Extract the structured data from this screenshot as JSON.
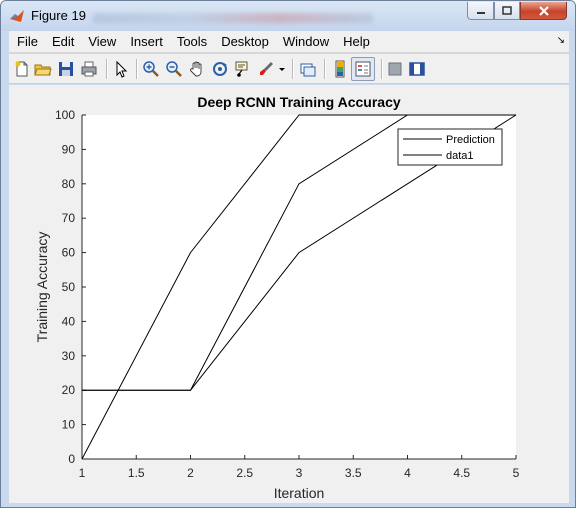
{
  "window": {
    "title": "Figure 19",
    "controls": [
      "minimize",
      "maximize",
      "close"
    ]
  },
  "menu": {
    "items": [
      "File",
      "Edit",
      "View",
      "Insert",
      "Tools",
      "Desktop",
      "Window",
      "Help"
    ]
  },
  "toolbar": {
    "icons": [
      "new-figure-icon",
      "open-file-icon",
      "save-icon",
      "print-icon",
      "pointer-icon",
      "zoom-in-icon",
      "zoom-out-icon",
      "pan-icon",
      "rotate-3d-icon",
      "data-cursor-icon",
      "brush-icon",
      "brush-dropdown-icon",
      "link-plot-icon",
      "colorbar-icon",
      "legend-icon",
      "hide-plot-tools-icon",
      "show-plot-tools-icon"
    ]
  },
  "chart_data": {
    "type": "line",
    "title": "Deep RCNN Training Accuracy",
    "xlabel": "Iteration",
    "ylabel": "Training Accuracy",
    "xlim": [
      1,
      5
    ],
    "ylim": [
      0,
      100
    ],
    "xticks": [
      1,
      1.5,
      2,
      2.5,
      3,
      3.5,
      4,
      4.5,
      5
    ],
    "xtick_labels": [
      "1",
      "1.5",
      "2",
      "2.5",
      "3",
      "3.5",
      "4",
      "4.5",
      "5"
    ],
    "yticks": [
      0,
      10,
      20,
      30,
      40,
      50,
      60,
      70,
      80,
      90,
      100
    ],
    "ytick_labels": [
      "0",
      "10",
      "20",
      "30",
      "40",
      "50",
      "60",
      "70",
      "80",
      "90",
      "100"
    ],
    "grid": false,
    "legend_position": "top-right",
    "series_color": "#000000",
    "series": [
      {
        "name": "Prediction",
        "x": [
          1,
          2,
          3,
          4,
          5
        ],
        "y": [
          20,
          20,
          60,
          80,
          100
        ]
      },
      {
        "name": "data1",
        "x": [
          1,
          2,
          3,
          4,
          5
        ],
        "y": [
          20,
          20,
          80,
          100,
          100
        ]
      },
      {
        "x": [
          1,
          2,
          3,
          4,
          5
        ],
        "y": [
          0,
          60,
          100,
          100,
          100
        ]
      }
    ]
  }
}
